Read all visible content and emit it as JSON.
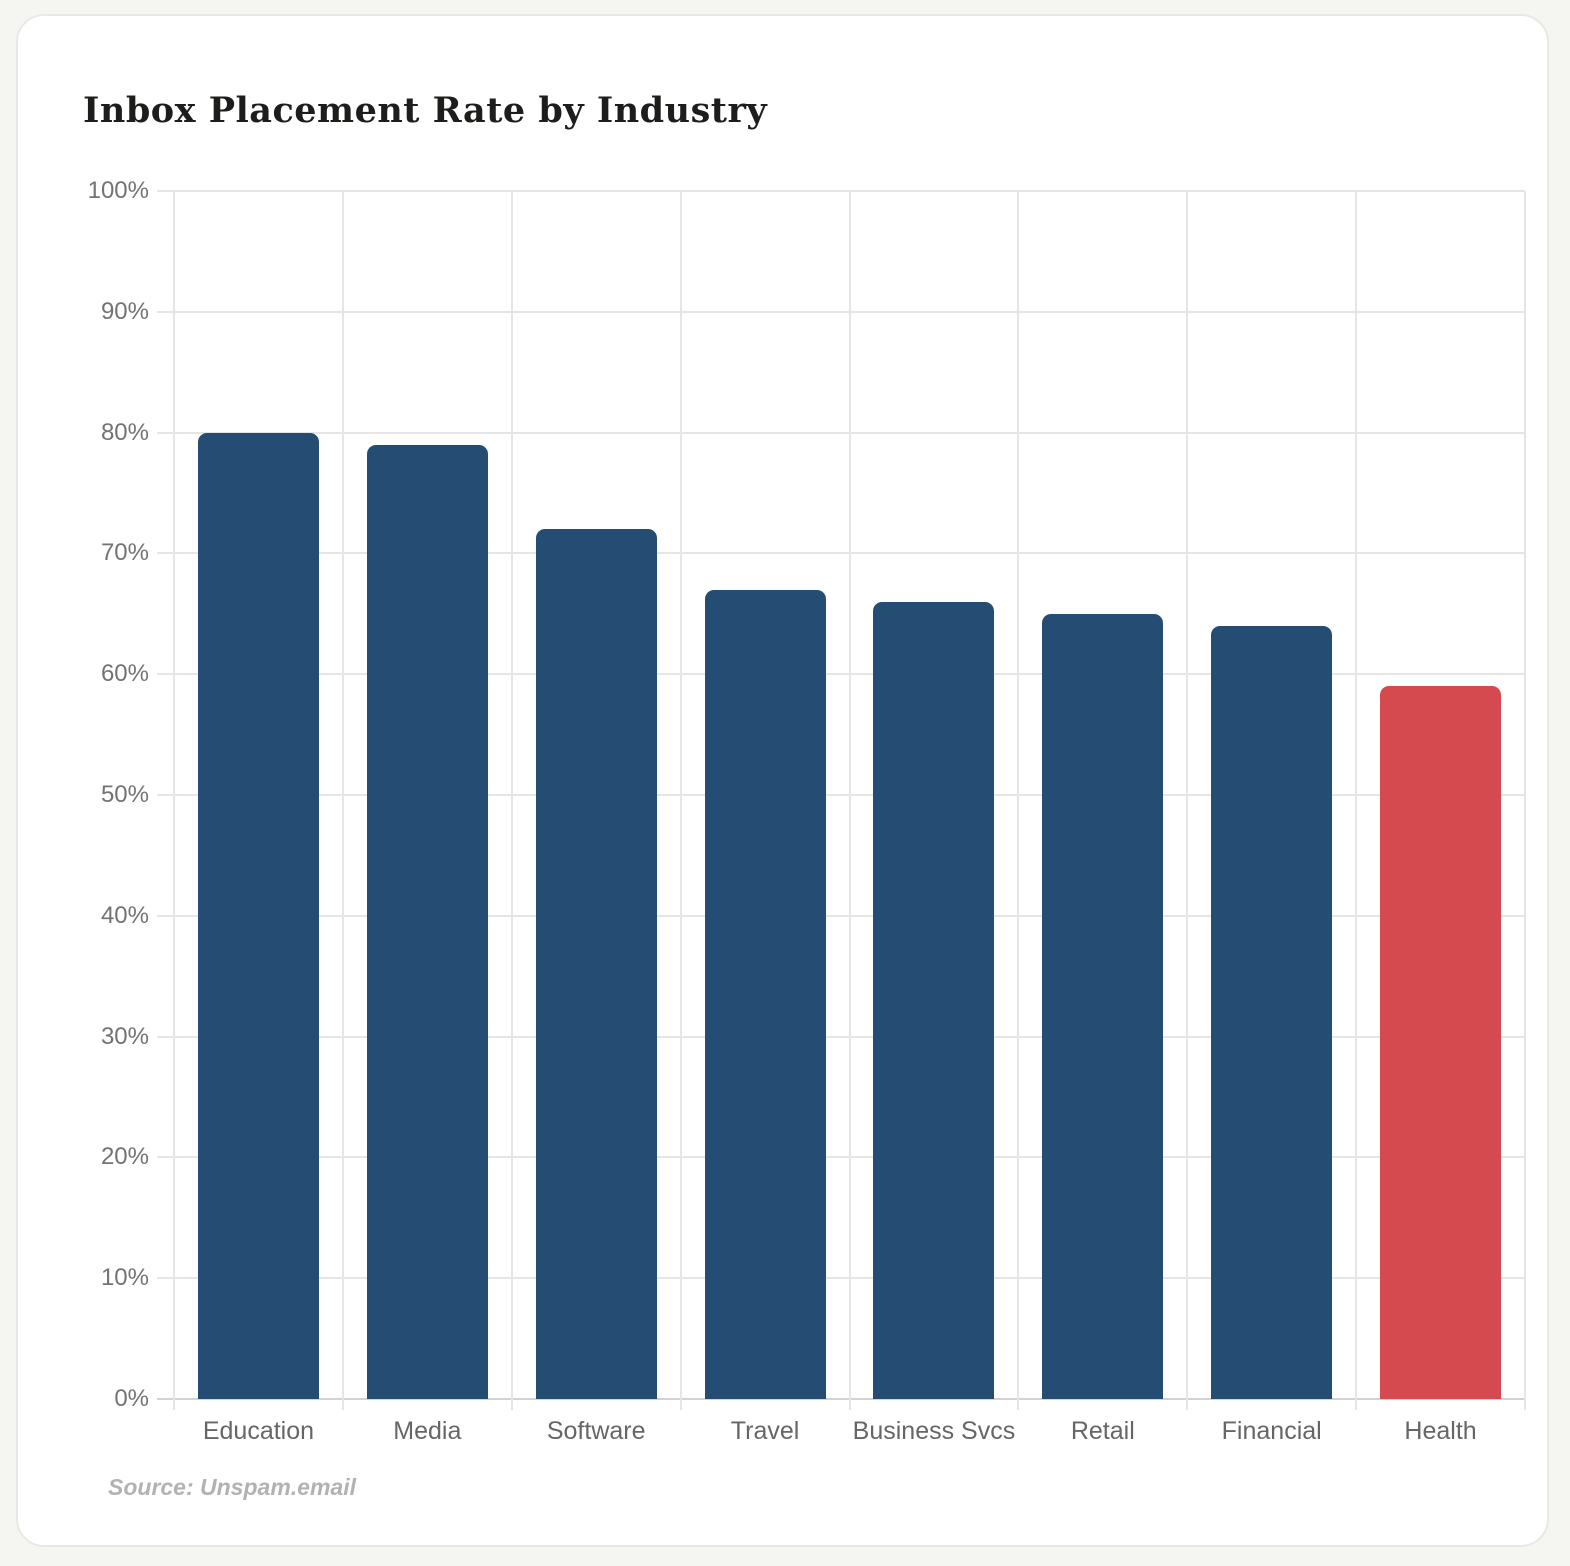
{
  "page": {
    "background_color": "#f5f5f2",
    "card_background": "#ffffff"
  },
  "chart": {
    "title": "Inbox Placement Rate by Industry",
    "source": "Source: Unspam.email",
    "bar_color": "#254d73",
    "highlight_color": "#d44a4e"
  },
  "chart_data": {
    "type": "bar",
    "title": "Inbox Placement Rate by Industry",
    "categories": [
      "Education",
      "Media",
      "Software",
      "Travel",
      "Business Svcs",
      "Retail",
      "Financial",
      "Health"
    ],
    "values": [
      80,
      79,
      72,
      67,
      66,
      65,
      64,
      59
    ],
    "unit": "%",
    "xlabel": "",
    "ylabel": "",
    "ylim": [
      0,
      100
    ],
    "ytick_interval": 10,
    "ytick_labels": [
      "0%",
      "10%",
      "20%",
      "30%",
      "40%",
      "50%",
      "60%",
      "70%",
      "80%",
      "90%",
      "100%"
    ],
    "grid": true,
    "legend": false,
    "highlighted_category": "Health",
    "source": "Source: Unspam.email"
  }
}
